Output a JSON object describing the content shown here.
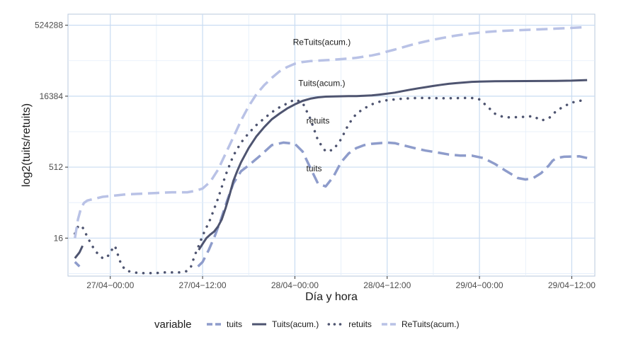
{
  "chart_data": {
    "type": "line",
    "title": "",
    "xlabel": "Día y hora",
    "ylabel": "log2(tuits/retuits)",
    "y_scale": "log2",
    "ylim": [
      2.5,
      900000
    ],
    "x_ticks": [
      "27/04−00:00",
      "27/04−12:00",
      "28/04−00:00",
      "28/04−12:00",
      "29/04−00:00",
      "29/04−12:00"
    ],
    "x_tick_hours": [
      0,
      12,
      24,
      36,
      48,
      60
    ],
    "xlim_hours": [
      -5.5,
      63
    ],
    "y_ticks": [
      16,
      512,
      16384,
      524288
    ],
    "y_tick_labels": [
      "16",
      "512",
      "16384",
      "524288"
    ],
    "grid": true,
    "legend_position": "bottom",
    "legend_title": "variable",
    "series": [
      {
        "name": "tuits",
        "color": "#8e9ccb",
        "style": "dashed",
        "segments": [
          {
            "x": [
              -4.6,
              -4.0
            ],
            "y": [
              5,
              4
            ]
          },
          {
            "x": [
              11.4,
              12.0,
              12.8,
              13.6,
              14.4,
              15.2,
              16.0,
              17.0,
              18.0,
              19.5,
              21.0,
              22.5,
              24.0,
              25.0,
              26.0,
              27.0,
              28.0,
              29.0,
              30.0,
              31.0,
              32.0,
              33.0,
              34.0,
              35.0,
              36.0,
              37.0,
              38.0,
              39.5,
              41.0,
              42.5,
              44.0,
              45.5,
              47.0,
              48.5,
              50.0,
              51.5,
              53.0,
              54.0,
              55.0,
              56.0,
              57.0,
              57.5,
              58.0,
              59.0,
              60.0,
              61.0,
              62.0
            ],
            "y": [
              4,
              5,
              9,
              18,
              40,
              100,
              230,
              420,
              560,
              900,
              1500,
              1700,
              1600,
              1100,
              500,
              230,
              200,
              320,
              650,
              1000,
              1300,
              1500,
              1600,
              1650,
              1700,
              1650,
              1500,
              1300,
              1150,
              1050,
              950,
              900,
              900,
              800,
              600,
              420,
              300,
              280,
              300,
              380,
              550,
              700,
              800,
              850,
              860,
              870,
              800
            ]
          }
        ]
      },
      {
        "name": "Tuits(acum.)",
        "color": "#4e5470",
        "style": "solid",
        "segments": [
          {
            "x": [
              -4.6,
              -4.0,
              -3.6
            ],
            "y": [
              6,
              8,
              11
            ]
          },
          {
            "x": [
              11.5,
              12.0,
              12.5,
              13.0,
              13.5,
              14.0,
              14.5,
              15.0,
              15.5,
              16.0,
              16.5,
              17.0,
              18.0,
              19.0,
              20.0,
              21.0,
              22.0,
              23.0,
              24.0,
              25.0,
              26.0,
              27.0,
              28.0,
              29.0,
              30.0,
              31.0,
              32.0,
              33.0,
              34.0,
              35.0,
              36.0,
              37.0,
              38.0,
              39.0,
              40.0,
              41.0,
              42.0,
              43.0,
              44.0,
              45.0,
              46.0,
              47.0,
              48.0,
              50.0,
              52.0,
              54.0,
              56.0,
              58.0,
              60.0,
              62.0
            ],
            "y": [
              9,
              12,
              16,
              19,
              22,
              28,
              40,
              70,
              130,
              260,
              420,
              650,
              1300,
              2300,
              3600,
              5300,
              7000,
              9000,
              11000,
              13000,
              14500,
              15500,
              16000,
              16200,
              16300,
              16400,
              16500,
              16700,
              17000,
              17700,
              18500,
              19500,
              21000,
              22500,
              24000,
              25500,
              27000,
              28500,
              30000,
              31000,
              32000,
              33000,
              33500,
              34000,
              34200,
              34300,
              34400,
              34600,
              35000,
              36000
            ]
          }
        ]
      },
      {
        "name": "retuits",
        "color": "#4e5470",
        "style": "dotted",
        "segments": [
          {
            "x": [
              -4.6,
              -4.2,
              -3.8,
              -3.4,
              -3.0,
              -2.6,
              -2.2,
              -1.8,
              -1.4,
              -1.0,
              -0.6,
              -0.2,
              0.2,
              0.6,
              1.0,
              1.4,
              2.0,
              3.0,
              4.0,
              5.0,
              6.0,
              7.0,
              8.0,
              9.0,
              10.0,
              10.5,
              11.0,
              11.5,
              12.0,
              13.0,
              14.0,
              15.0,
              16.0,
              17.0,
              18.0,
              19.0,
              20.0,
              21.0,
              22.0,
              23.0,
              24.0,
              25.0,
              26.0,
              27.0,
              28.0,
              29.0,
              30.0,
              31.0,
              32.0,
              33.0,
              34.0,
              35.0,
              36.0,
              37.0,
              38.0,
              39.0,
              40.0,
              41.0,
              42.0,
              43.0,
              44.0,
              45.0,
              46.0,
              47.0,
              48.0,
              49.0,
              50.0,
              51.0,
              52.0,
              53.0,
              54.0,
              55.0,
              56.0,
              57.0,
              58.0,
              59.0,
              60.0,
              61.0,
              62.0
            ],
            "y": [
              20,
              28,
              30,
              24,
              17,
              13,
              10,
              8,
              7,
              6,
              6,
              7,
              9,
              11,
              7,
              4.5,
              3.3,
              3.0,
              2.9,
              2.9,
              2.9,
              3.0,
              3.0,
              3.0,
              3.2,
              4.0,
              7.0,
              11.0,
              18,
              40,
              110,
              350,
              900,
              1700,
              2700,
              4000,
              5500,
              7500,
              9500,
              11500,
              14000,
              12000,
              5500,
              1900,
              1100,
              1200,
              2000,
              4200,
              7000,
              9000,
              11000,
              12500,
              13500,
              14000,
              14500,
              14800,
              15000,
              15000,
              14900,
              14800,
              14800,
              14900,
              15000,
              15000,
              14000,
              10000,
              7000,
              6000,
              5800,
              5900,
              6000,
              6200,
              5000,
              5500,
              8000,
              10000,
              12000,
              13000,
              14000
            ]
          }
        ]
      },
      {
        "name": "ReTuits(acum.)",
        "color": "#b9c2e6",
        "style": "dashed",
        "segments": [
          {
            "x": [
              -4.6,
              -4.2,
              -3.8,
              -3.4,
              -3.0,
              -2.0,
              -1.0,
              0.0,
              1.0,
              2.0,
              4.0,
              6.0,
              8.0,
              10.0,
              11.0,
              12.0,
              13.0,
              14.0,
              15.0,
              16.0,
              17.0,
              18.0,
              19.0,
              20.0,
              21.0,
              22.0,
              23.0,
              24.0,
              25.0,
              26.0,
              27.0,
              28.0,
              29.0,
              30.0,
              31.0,
              32.0,
              33.0,
              34.0,
              35.0,
              36.0,
              37.0,
              38.0,
              39.0,
              40.0,
              41.0,
              42.0,
              43.0,
              44.0,
              45.0,
              46.0,
              47.0,
              48.0,
              49.0,
              50.0,
              52.0,
              54.0,
              56.0,
              58.0,
              60.0,
              62.0
            ],
            "y": [
              16,
              40,
              70,
              90,
              100,
              110,
              120,
              125,
              130,
              135,
              140,
              145,
              150,
              150,
              160,
              180,
              250,
              450,
              1000,
              2200,
              5000,
              10000,
              18000,
              28000,
              40000,
              55000,
              68000,
              80000,
              87000,
              91000,
              93000,
              95000,
              97000,
              100000,
              103000,
              107000,
              113000,
              120000,
              130000,
              145000,
              160000,
              178000,
              198000,
              218000,
              238000,
              258000,
              278000,
              298000,
              318000,
              335000,
              350000,
              365000,
              378000,
              390000,
              405000,
              418000,
              430000,
              445000,
              460000,
              480000
            ]
          }
        ]
      }
    ],
    "annotations": [
      {
        "text": "ReTuits(acum.)",
        "x": 27.5,
        "y": 200000
      },
      {
        "text": "Tuits(acum.)",
        "x": 27.5,
        "y": 27000
      },
      {
        "text": "retuits",
        "x": 27.0,
        "y": 4300
      },
      {
        "text": "tuits",
        "x": 26.5,
        "y": 420
      }
    ]
  }
}
